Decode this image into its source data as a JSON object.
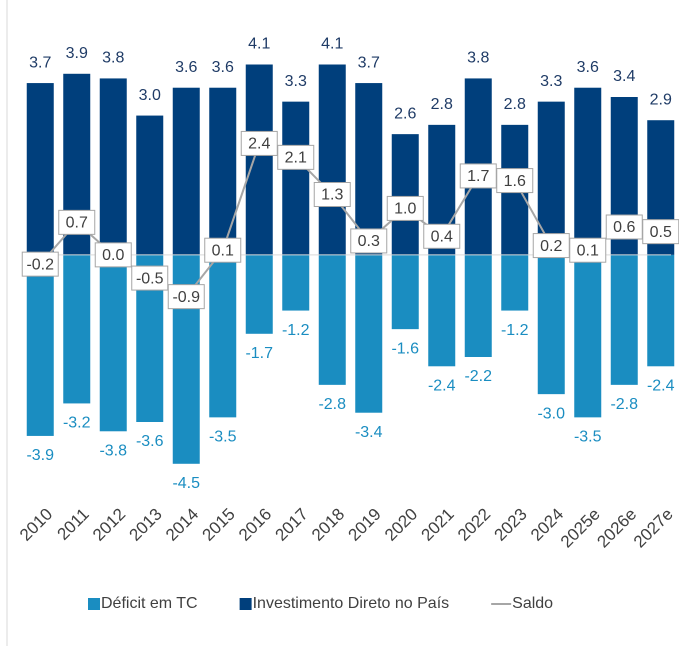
{
  "chart_data": {
    "type": "bar-line",
    "categories": [
      "2010",
      "2011",
      "2012",
      "2013",
      "2014",
      "2015",
      "2016",
      "2017",
      "2018",
      "2019",
      "2020",
      "2021",
      "2022",
      "2023",
      "2024",
      "2025e",
      "2026e",
      "2027e"
    ],
    "series": [
      {
        "name": "Déficit em TC",
        "type": "bar",
        "color": "#1a8dc1",
        "values": [
          -3.9,
          -3.2,
          -3.8,
          -3.6,
          -4.5,
          -3.5,
          -1.7,
          -1.2,
          -2.8,
          -3.4,
          -1.6,
          -2.4,
          -2.2,
          -1.2,
          -3.0,
          -3.5,
          -2.8,
          -2.4
        ],
        "value_labels": [
          "-3.9",
          "-3.2",
          "-3.8",
          "-3.6",
          "-4.5",
          "-3.5",
          "-1.7",
          "-1.2",
          "-2.8",
          "-3.4",
          "-1.6",
          "-2.4",
          "-2.2",
          "-1.2",
          "-3.0",
          "-3.5",
          "-2.8",
          "-2.4"
        ]
      },
      {
        "name": "Investimento Direto no País",
        "type": "bar",
        "color": "#003f7c",
        "values": [
          3.7,
          3.9,
          3.8,
          3.0,
          3.6,
          3.6,
          4.1,
          3.3,
          4.1,
          3.7,
          2.6,
          2.8,
          3.8,
          2.8,
          3.3,
          3.6,
          3.4,
          2.9
        ],
        "value_labels": [
          "3.7",
          "3.9",
          "3.8",
          "3.0",
          "3.6",
          "3.6",
          "4.1",
          "3.3",
          "4.1",
          "3.7",
          "2.6",
          "2.8",
          "3.8",
          "2.8",
          "3.3",
          "3.6",
          "3.4",
          "2.9"
        ]
      },
      {
        "name": "Saldo",
        "type": "line",
        "color": "#a6a6a6",
        "values": [
          -0.2,
          0.7,
          0.0,
          -0.5,
          -0.9,
          0.1,
          2.4,
          2.1,
          1.3,
          0.3,
          1.0,
          0.4,
          1.7,
          1.6,
          0.2,
          0.1,
          0.6,
          0.5
        ],
        "value_labels": [
          "-0.2",
          "0.7",
          "0.0",
          "-0.5",
          "-0.9",
          "0.1",
          "2.4",
          "2.1",
          "1.3",
          "0.3",
          "1.0",
          "0.4",
          "1.7",
          "1.6",
          "0.2",
          "0.1",
          "0.6",
          "0.5"
        ]
      }
    ],
    "ylim": [
      -5,
      4.8
    ],
    "legend": "bottom"
  }
}
